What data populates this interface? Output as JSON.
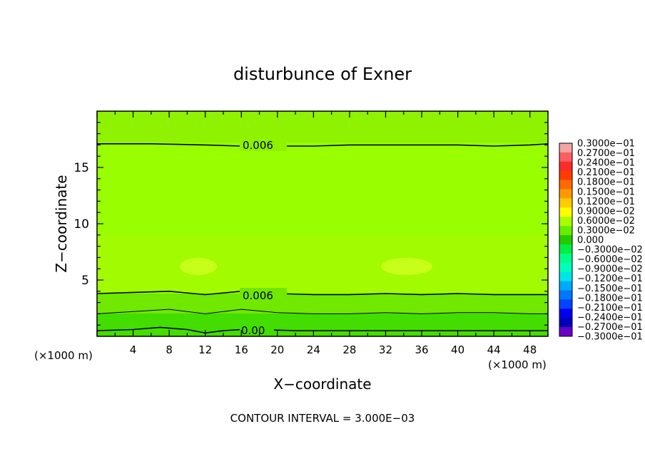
{
  "chart_data": {
    "type": "heatmap",
    "title": "disturbunce of Exner",
    "xlabel": "X−coordinate",
    "ylabel": "Z−coordinate",
    "x_unit": "(×1000 m)",
    "x_unit_left": "(×1000 m)",
    "xlim": [
      0,
      50
    ],
    "ylim": [
      0,
      20
    ],
    "x_ticks": [
      4,
      8,
      12,
      16,
      20,
      24,
      28,
      32,
      36,
      40,
      44,
      48
    ],
    "y_ticks": [
      5,
      10,
      15
    ],
    "contour_interval_text": "CONTOUR INTERVAL = 3.000E−03",
    "contour_labels": [
      {
        "text": "0.006",
        "x": 17.5,
        "z": 16.8
      },
      {
        "text": "0.006",
        "x": 17.5,
        "z": 3.6
      },
      {
        "text": "0.00",
        "x": 17.0,
        "z": 0.6
      }
    ],
    "contours": [
      {
        "level": 0.006,
        "points": [
          [
            0,
            17.1
          ],
          [
            6,
            17.1
          ],
          [
            12,
            17.0
          ],
          [
            16,
            16.9
          ],
          [
            20,
            16.9
          ],
          [
            24,
            16.9
          ],
          [
            28,
            17.0
          ],
          [
            32,
            17.0
          ],
          [
            36,
            17.0
          ],
          [
            40,
            17.0
          ],
          [
            44,
            16.9
          ],
          [
            48,
            17.0
          ],
          [
            50,
            17.1
          ]
        ]
      },
      {
        "level": 0.006,
        "points": [
          [
            0,
            3.8
          ],
          [
            4,
            3.9
          ],
          [
            8,
            4.0
          ],
          [
            12,
            3.7
          ],
          [
            16,
            4.0
          ],
          [
            20,
            3.8
          ],
          [
            24,
            3.7
          ],
          [
            28,
            3.7
          ],
          [
            32,
            3.8
          ],
          [
            36,
            3.7
          ],
          [
            40,
            3.8
          ],
          [
            44,
            3.7
          ],
          [
            48,
            3.7
          ],
          [
            50,
            3.7
          ]
        ]
      },
      {
        "level": 0.003,
        "points": [
          [
            0,
            2.0
          ],
          [
            4,
            2.2
          ],
          [
            8,
            2.4
          ],
          [
            12,
            2.0
          ],
          [
            16,
            2.4
          ],
          [
            20,
            2.1
          ],
          [
            24,
            2.0
          ],
          [
            28,
            2.0
          ],
          [
            32,
            2.1
          ],
          [
            36,
            2.0
          ],
          [
            40,
            2.1
          ],
          [
            44,
            2.1
          ],
          [
            48,
            2.0
          ],
          [
            50,
            2.0
          ]
        ]
      },
      {
        "level": 0.0,
        "points": [
          [
            0,
            0.5
          ],
          [
            4,
            0.6
          ],
          [
            7,
            0.8
          ],
          [
            10,
            0.6
          ],
          [
            12,
            0.3
          ],
          [
            14,
            0.5
          ],
          [
            16,
            0.6
          ],
          [
            18,
            0.6
          ],
          [
            22,
            0.5
          ],
          [
            26,
            0.5
          ],
          [
            30,
            0.5
          ],
          [
            34,
            0.5
          ],
          [
            38,
            0.5
          ],
          [
            42,
            0.5
          ],
          [
            46,
            0.5
          ],
          [
            50,
            0.5
          ]
        ]
      }
    ],
    "colorbar": {
      "labels": [
        "0.3000e−01",
        "0.2700e−01",
        "0.2400e−01",
        "0.2100e−01",
        "0.1800e−01",
        "0.1500e−01",
        "0.1200e−01",
        "0.9000e−02",
        "0.6000e−02",
        "0.3000e−02",
        "0.000",
        "−0.3000e−02",
        "−0.6000e−02",
        "−0.9000e−02",
        "−0.1200e−01",
        "−0.1500e−01",
        "−0.1800e−01",
        "−0.2100e−01",
        "−0.2400e−01",
        "−0.2700e−01",
        "−0.3000e−01"
      ],
      "colors": [
        "#f5a3a3",
        "#fa6060",
        "#ff2a2a",
        "#ff3c00",
        "#ff6a00",
        "#ff9900",
        "#ffcc00",
        "#ffff00",
        "#a8ff00",
        "#66ee00",
        "#22cc00",
        "#00ee44",
        "#00ff88",
        "#00ffbb",
        "#00e6e6",
        "#00aaff",
        "#0077ff",
        "#0044ff",
        "#0000ee",
        "#0000bb",
        "#6a00c8"
      ]
    }
  }
}
